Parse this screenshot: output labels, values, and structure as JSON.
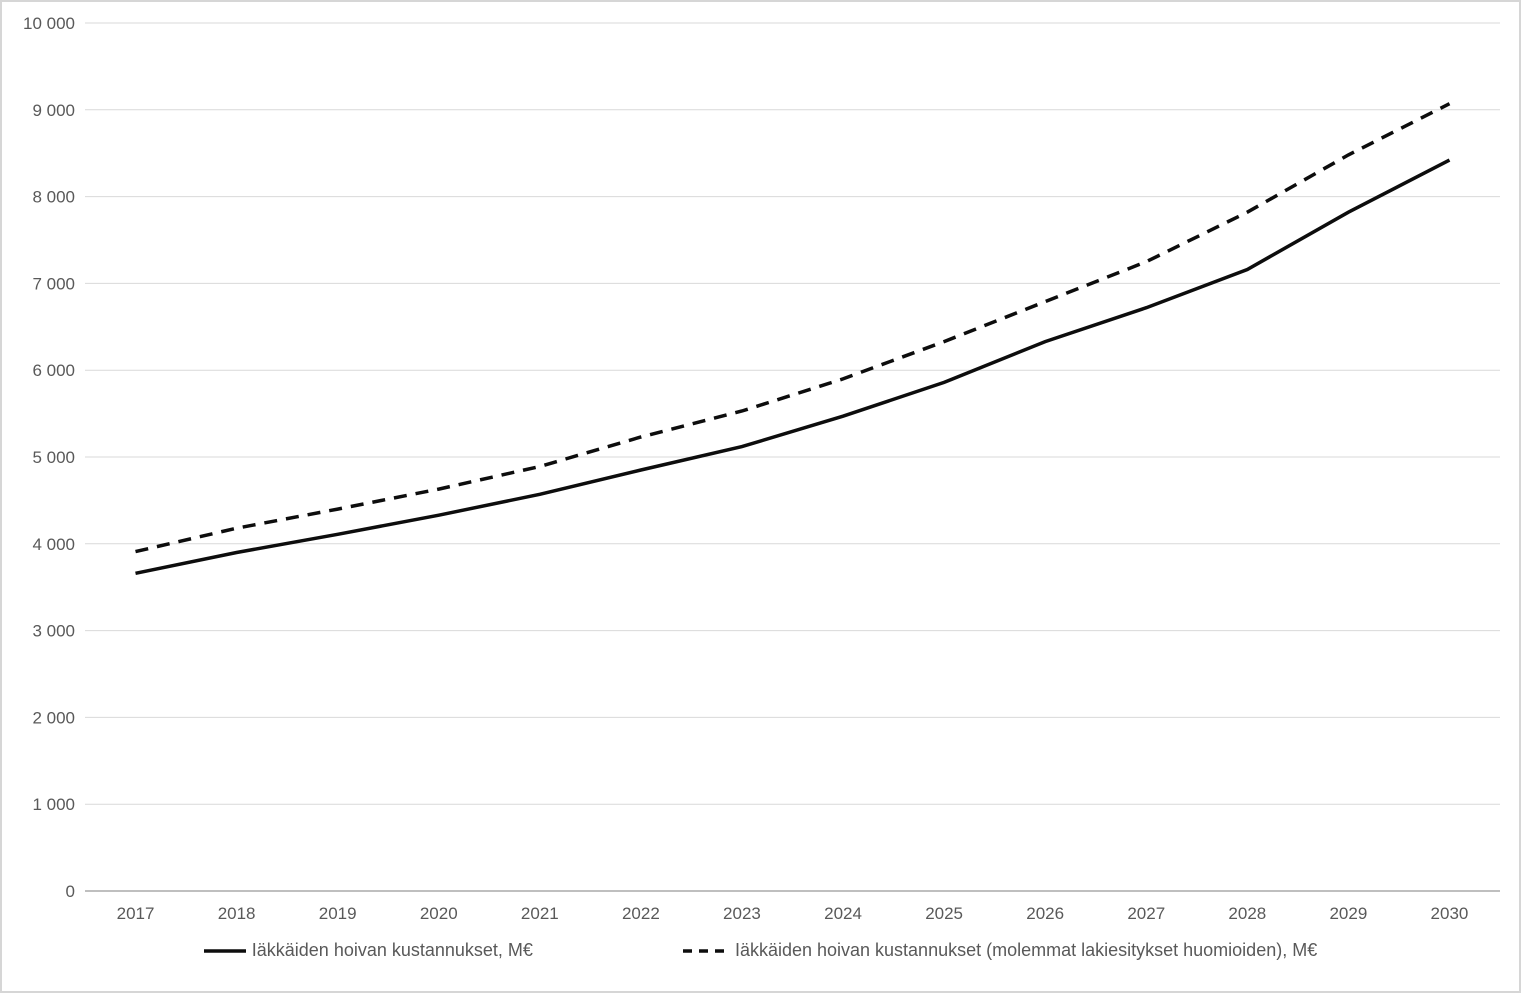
{
  "chart_data": {
    "type": "line",
    "x": [
      2017,
      2018,
      2019,
      2020,
      2021,
      2022,
      2023,
      2024,
      2025,
      2026,
      2027,
      2028,
      2029,
      2030
    ],
    "series": [
      {
        "name": "Iäkkäiden hoivan kustannukset, M€",
        "style": "solid",
        "color": "#0d0d0d",
        "values": [
          3660,
          3900,
          4110,
          4330,
          4570,
          4850,
          5120,
          5470,
          5860,
          6330,
          6720,
          7160,
          7820,
          8420
        ]
      },
      {
        "name": "Iäkkäiden hoivan kustannukset (molemmat lakiesitykset huomioiden), M€",
        "style": "dashed",
        "color": "#0d0d0d",
        "values": [
          3910,
          4180,
          4400,
          4630,
          4890,
          5230,
          5530,
          5900,
          6330,
          6790,
          7250,
          7820,
          8480,
          9070
        ]
      }
    ],
    "title": "",
    "xlabel": "",
    "ylabel": "",
    "ylim": [
      0,
      10000
    ],
    "ytick_interval": 1000,
    "ytick_labels": [
      "0",
      "1 000",
      "2 000",
      "3 000",
      "4 000",
      "5 000",
      "6 000",
      "7 000",
      "8 000",
      "9 000",
      "10 000"
    ],
    "grid": true,
    "legend_position": "bottom"
  },
  "style": {
    "gridline_color": "#d9d9d9",
    "axis_line_color": "#bfbfbf",
    "tick_label_color": "#595959",
    "line_color": "#0d0d0d",
    "background_color": "#ffffff",
    "frame_border_color": "#d6d6d6"
  }
}
